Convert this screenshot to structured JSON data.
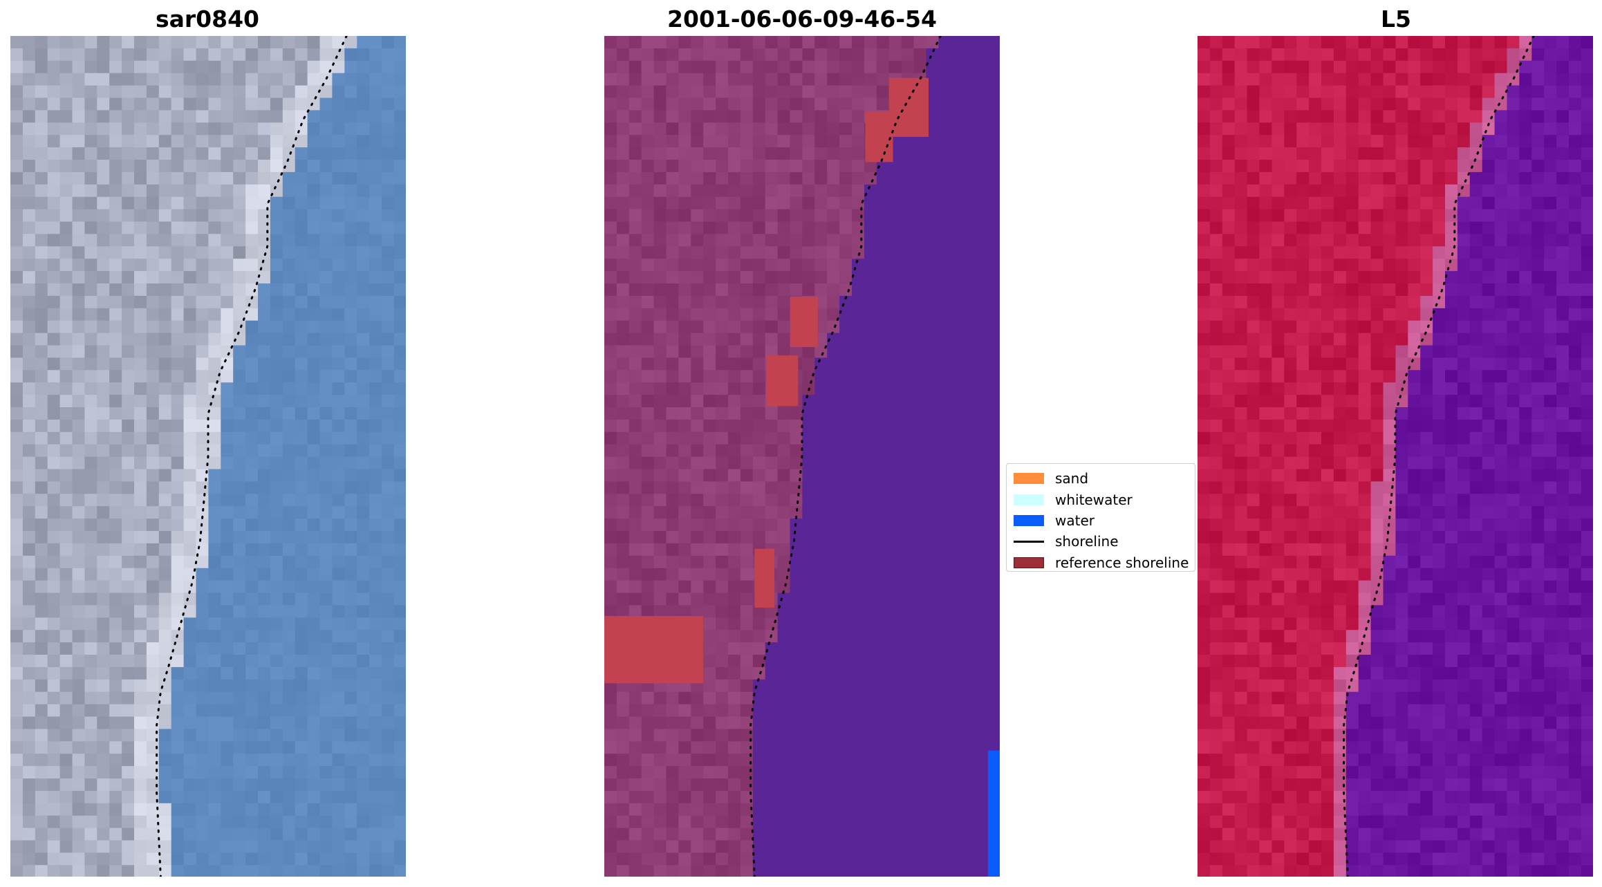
{
  "panels": [
    {
      "title": "sar0840"
    },
    {
      "title": "2001-06-06-09-46-54"
    },
    {
      "title": "L5"
    }
  ],
  "legend": {
    "items": [
      {
        "label": "sand",
        "type": "patch",
        "color": "#ff8c3a"
      },
      {
        "label": "whitewater",
        "type": "patch",
        "color": "#ccffff"
      },
      {
        "label": "water",
        "type": "patch",
        "color": "#0a5cff"
      },
      {
        "label": "shoreline",
        "type": "line",
        "color": "#000000"
      },
      {
        "label": "reference shoreline",
        "type": "patch",
        "color": "#9b2f35"
      }
    ]
  },
  "colors": {
    "rgb_land": "#a7acbf",
    "rgb_water": "#5f8ac0",
    "class_land": "#8e3d74",
    "class_water": "#5a2697",
    "class_reference": "#c24250",
    "ndwi_land": "#c31b4b",
    "ndwi_water": "#6a15a0"
  }
}
